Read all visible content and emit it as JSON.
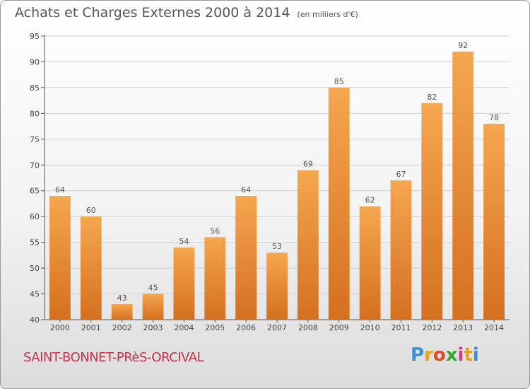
{
  "title": "Achats et Charges Externes 2000 à 2014",
  "subtitle": "(en milliers d'€)",
  "place_name": "SAINT-BONNET-PRèS-ORCIVAL",
  "logo": {
    "text": "Proxiti",
    "letter_colors": [
      "#3a8fd0",
      "#e8a21a",
      "#d94c2a",
      "#3aa23a",
      "#d03a8a",
      "#e8a21a",
      "#3a8fd0"
    ]
  },
  "colors": {
    "bar_top": "#f6a650",
    "bar_bottom": "#d4701f",
    "grid": "#d0d0d0",
    "axis": "#555555",
    "place_name": "#c8324a"
  },
  "chart_data": {
    "type": "bar",
    "categories": [
      "2000",
      "2001",
      "2002",
      "2003",
      "2004",
      "2005",
      "2006",
      "2007",
      "2008",
      "2009",
      "2010",
      "2011",
      "2012",
      "2013",
      "2014"
    ],
    "values": [
      64,
      60,
      43,
      45,
      54,
      56,
      64,
      53,
      69,
      85,
      62,
      67,
      82,
      92,
      78
    ],
    "ylim": [
      40,
      95
    ],
    "yticks": [
      40,
      45,
      50,
      55,
      60,
      65,
      70,
      75,
      80,
      85,
      90,
      95
    ],
    "grid": true,
    "show_value_labels": true
  }
}
